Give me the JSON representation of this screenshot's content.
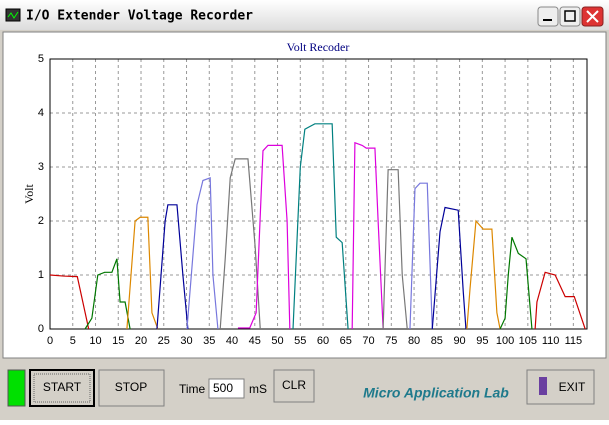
{
  "window": {
    "title": "I/O Extender Voltage Recorder"
  },
  "chart_data": {
    "type": "line",
    "title": "Volt Recoder",
    "y_label": "Volt",
    "xlim": [
      0,
      118
    ],
    "xticks": [
      0,
      5,
      10,
      15,
      20,
      25,
      30,
      35,
      40,
      45,
      50,
      55,
      60,
      65,
      70,
      75,
      80,
      85,
      90,
      95,
      100,
      105,
      110,
      115
    ],
    "ylim": [
      0,
      5
    ],
    "yticks": [
      0,
      1,
      2,
      3,
      4,
      5
    ],
    "grid": true,
    "series": [
      {
        "color": "#cc0000",
        "x": [
          0,
          3,
          6,
          8.5
        ],
        "values": [
          1.0,
          0.98,
          0.97,
          0
        ]
      },
      {
        "color": "#007700",
        "x": [
          7.7,
          9.2,
          10.5,
          12,
          13.6,
          14.7,
          15.4,
          16.5,
          17.6
        ],
        "values": [
          0,
          0.2,
          1.0,
          1.05,
          1.05,
          1.3,
          0.5,
          0.5,
          0
        ]
      },
      {
        "color": "#dd8800",
        "x": [
          16.9,
          18.7,
          19.8,
          21.5,
          22.4,
          23.7
        ],
        "values": [
          0,
          2.0,
          2.07,
          2.07,
          0.3,
          0
        ]
      },
      {
        "color": "#000099",
        "x": [
          23.5,
          25.3,
          25.9,
          27.9,
          29.2,
          30.3
        ],
        "values": [
          0,
          2.0,
          2.3,
          2.3,
          1.0,
          0
        ]
      },
      {
        "color": "#7777dd",
        "x": [
          30.1,
          32.3,
          33.6,
          35.2,
          35.8,
          36.9
        ],
        "values": [
          0,
          2.3,
          2.75,
          2.8,
          1.0,
          0
        ]
      },
      {
        "color": "#777777",
        "x": [
          37.4,
          38.5,
          39.6,
          40.7,
          43.5,
          45.1,
          46.2
        ],
        "values": [
          0,
          1.3,
          2.8,
          3.15,
          3.15,
          1.5,
          0
        ]
      },
      {
        "color": "#dd00dd",
        "x": [
          41.3,
          43.9,
          45.3,
          46.8,
          47.9,
          51,
          52.1,
          52.7
        ],
        "values": [
          0.02,
          0.02,
          0.3,
          3.3,
          3.4,
          3.4,
          2.0,
          0
        ]
      },
      {
        "color": "#008080",
        "x": [
          53.4,
          55,
          56,
          58.2,
          62,
          62.9,
          64.2,
          65.5
        ],
        "values": [
          0,
          3.0,
          3.7,
          3.8,
          3.8,
          1.7,
          1.6,
          0
        ]
      },
      {
        "color": "#dd00dd",
        "x": [
          66.4,
          67,
          68.6,
          69.5,
          71.4,
          72.1,
          73.2
        ],
        "values": [
          0,
          3.45,
          3.4,
          3.35,
          3.35,
          2.0,
          0
        ]
      },
      {
        "color": "#777777",
        "x": [
          73.2,
          74.3,
          76.5,
          77.4,
          78.5
        ],
        "values": [
          0,
          2.95,
          2.95,
          1.0,
          0
        ]
      },
      {
        "color": "#7777dd",
        "x": [
          79.1,
          80.2,
          81.3,
          82.9,
          84
        ],
        "values": [
          0,
          2.6,
          2.7,
          2.7,
          0
        ]
      },
      {
        "color": "#000099",
        "x": [
          84,
          85.7,
          86.8,
          89.7,
          90.8,
          91.4
        ],
        "values": [
          0,
          1.8,
          2.25,
          2.2,
          0.7,
          0
        ]
      },
      {
        "color": "#dd8800",
        "x": [
          91.6,
          92.3,
          93.6,
          95.2,
          97.1,
          98.2,
          98.9
        ],
        "values": [
          0,
          0.75,
          2.0,
          1.85,
          1.85,
          0.3,
          0
        ]
      },
      {
        "color": "#007700",
        "x": [
          98.9,
          100,
          100.7,
          101.5,
          102.9,
          104.6,
          105.9
        ],
        "values": [
          0,
          0.2,
          1.0,
          1.7,
          1.4,
          1.3,
          0
        ]
      },
      {
        "color": "#cc0000",
        "x": [
          106.6,
          107,
          108.8,
          111,
          113.2,
          115.2,
          117.6
        ],
        "values": [
          0,
          0.5,
          1.05,
          1.0,
          0.6,
          0.6,
          0
        ]
      }
    ]
  },
  "controls": {
    "start": "START",
    "stop": "STOP",
    "time_label": "Time",
    "time_value": "500",
    "time_unit": "mS",
    "clear": "CLR",
    "brand": "Micro Application Lab",
    "exit": "EXIT"
  }
}
